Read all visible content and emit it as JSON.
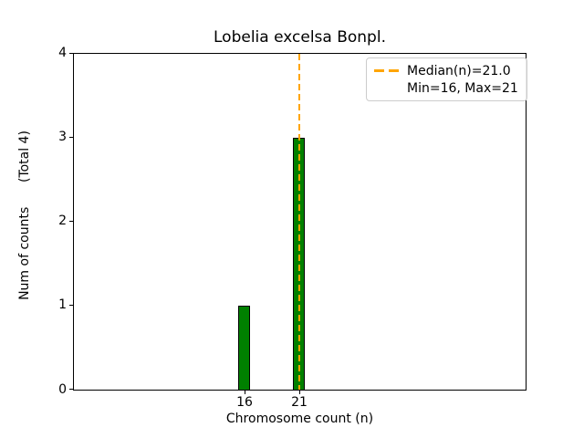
{
  "title": "Lobelia excelsa Bonpl.",
  "axes": {
    "xlabel": "Chromosome count (n)",
    "ylabel": "Num of counts      (Total 4)",
    "yticks": [
      "0",
      "1",
      "2",
      "3",
      "4"
    ],
    "xticks": [
      "16",
      "21"
    ]
  },
  "legend": {
    "median_label": "Median(n)=21.0",
    "minmax_label": "Min=16, Max=21"
  },
  "colors": {
    "bar": "#008000",
    "bar_edge": "#000000",
    "median": "#FFA500",
    "axis": "#000000",
    "legend_border": "#cccccc",
    "bg": "#ffffff"
  },
  "chart_data": {
    "type": "bar",
    "title": "Lobelia excelsa Bonpl.",
    "xlabel": "Chromosome count (n)",
    "ylabel": "Num of counts      (Total 4)",
    "categories": [
      16,
      21
    ],
    "values": [
      1,
      3
    ],
    "total_counts": 4,
    "median": 21.0,
    "min": 16,
    "max": 21,
    "xlim": [
      0.42,
      41.67
    ],
    "ylim": [
      0,
      4
    ],
    "grid": false,
    "legend_position": "upper right"
  }
}
